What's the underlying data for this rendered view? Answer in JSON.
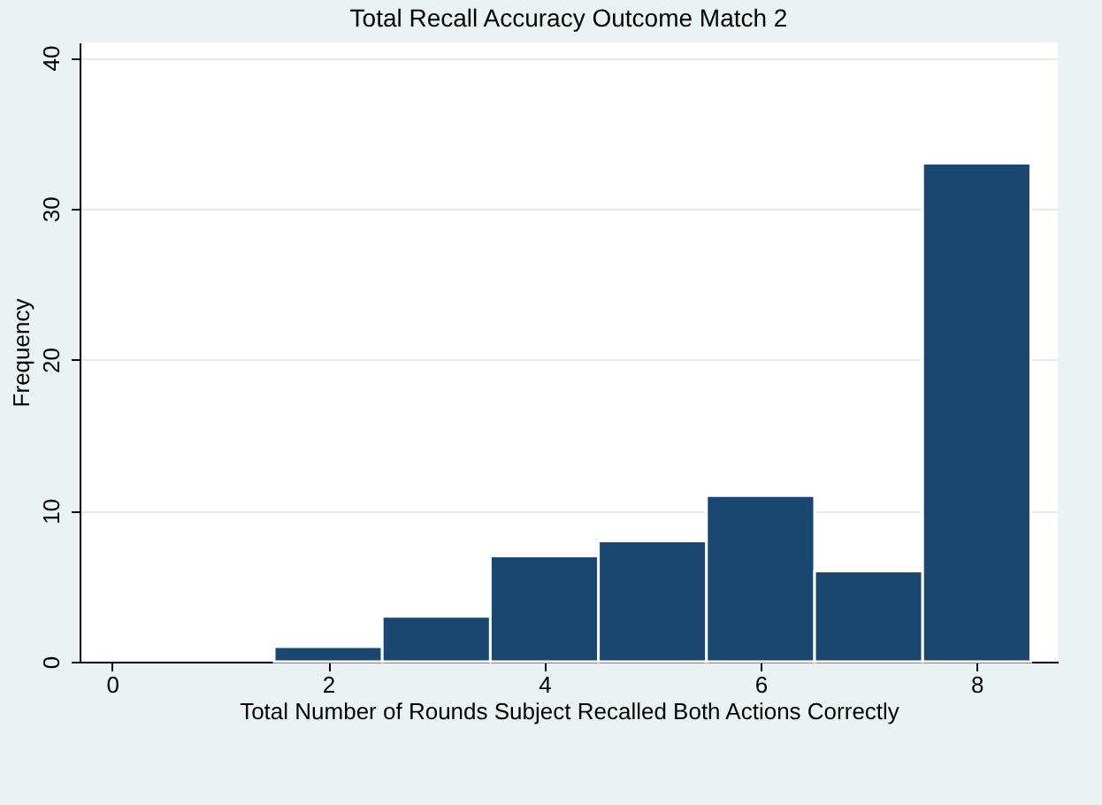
{
  "chart_data": {
    "type": "histogram",
    "title": "Total Recall Accuracy Outcome Match 2",
    "xlabel": "Total Number of Rounds Subject Recalled Both Actions Correctly",
    "ylabel": "Frequency",
    "bins": [
      1.5,
      2.5,
      3.5,
      4.5,
      5.5,
      6.5,
      7.5,
      8.5
    ],
    "values": [
      1,
      3,
      7,
      8,
      11,
      6,
      33
    ],
    "color": "#1a476f",
    "xlim": [
      -0.3,
      8.75
    ],
    "xticks": [
      0,
      2,
      4,
      6,
      8
    ],
    "ylim": [
      0,
      41
    ],
    "yticks": [
      0,
      10,
      20,
      30,
      40
    ],
    "grid": "y"
  }
}
